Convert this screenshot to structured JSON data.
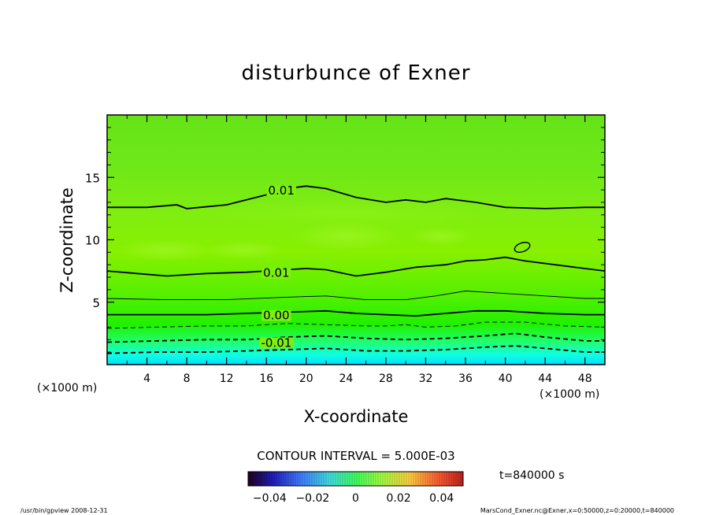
{
  "chart_data": {
    "type": "contour",
    "title": "disturbunce of Exner",
    "xlabel": "X-coordinate",
    "ylabel": "Z-coordinate",
    "x_unit": "(×1000 m)",
    "y_unit": "(×1000 m)",
    "xlim": [
      0,
      50
    ],
    "ylim": [
      0,
      20
    ],
    "x_ticks": [
      "4",
      "8",
      "12",
      "16",
      "20",
      "24",
      "28",
      "32",
      "36",
      "40",
      "44",
      "48"
    ],
    "y_ticks": [
      "5",
      "10",
      "15"
    ],
    "contour_interval_text": "CONTOUR INTERVAL = 5.000E-03",
    "time_text": "t=840000 s",
    "colorbar": {
      "range": [
        -0.05,
        0.05
      ],
      "tick_labels": [
        "−0.04",
        "−0.02",
        "0",
        "0.02",
        "0.04"
      ],
      "tick_values": [
        -0.04,
        -0.02,
        0,
        0.02,
        0.04
      ]
    },
    "contour_labels": [
      {
        "text": "0.01",
        "x": 17.5,
        "y": 14.0
      },
      {
        "text": "0.01",
        "x": 17.0,
        "y": 7.4
      },
      {
        "text": "0.00",
        "x": 17.0,
        "y": 4.0
      },
      {
        "text": "-0.01",
        "x": 17.0,
        "y": 1.8
      }
    ],
    "contours": [
      {
        "level": 0.01,
        "style": "solid",
        "points": [
          [
            0,
            12.6
          ],
          [
            4,
            12.6
          ],
          [
            7,
            12.8
          ],
          [
            8,
            12.5
          ],
          [
            12,
            12.8
          ],
          [
            16,
            13.6
          ],
          [
            18,
            14.1
          ],
          [
            20,
            14.3
          ],
          [
            22,
            14.1
          ],
          [
            25,
            13.4
          ],
          [
            28,
            13.0
          ],
          [
            30,
            13.2
          ],
          [
            32,
            13.0
          ],
          [
            34,
            13.3
          ],
          [
            37,
            13.0
          ],
          [
            40,
            12.6
          ],
          [
            44,
            12.5
          ],
          [
            48,
            12.6
          ],
          [
            50,
            12.6
          ]
        ]
      },
      {
        "level": 0.01,
        "style": "solid",
        "points": [
          [
            0,
            7.5
          ],
          [
            3,
            7.3
          ],
          [
            6,
            7.1
          ],
          [
            10,
            7.3
          ],
          [
            14,
            7.4
          ],
          [
            18,
            7.6
          ],
          [
            20,
            7.7
          ],
          [
            22,
            7.6
          ],
          [
            25,
            7.1
          ],
          [
            28,
            7.4
          ],
          [
            31,
            7.8
          ],
          [
            34,
            8.0
          ],
          [
            36,
            8.3
          ],
          [
            38,
            8.4
          ],
          [
            40,
            8.6
          ],
          [
            42,
            8.3
          ],
          [
            45,
            8.0
          ],
          [
            48,
            7.7
          ],
          [
            50,
            7.5
          ]
        ]
      },
      {
        "level": 0.005,
        "style": "solid",
        "points": [
          [
            0,
            5.3
          ],
          [
            6,
            5.2
          ],
          [
            12,
            5.2
          ],
          [
            18,
            5.4
          ],
          [
            22,
            5.5
          ],
          [
            26,
            5.2
          ],
          [
            30,
            5.2
          ],
          [
            33,
            5.5
          ],
          [
            36,
            5.9
          ],
          [
            40,
            5.7
          ],
          [
            44,
            5.5
          ],
          [
            48,
            5.3
          ],
          [
            50,
            5.3
          ]
        ]
      },
      {
        "level": 0.0,
        "style": "solid",
        "points": [
          [
            0,
            4.0
          ],
          [
            5,
            4.0
          ],
          [
            10,
            4.0
          ],
          [
            14,
            4.1
          ],
          [
            18,
            4.2
          ],
          [
            22,
            4.3
          ],
          [
            25,
            4.1
          ],
          [
            28,
            4.0
          ],
          [
            31,
            3.9
          ],
          [
            34,
            4.1
          ],
          [
            37,
            4.3
          ],
          [
            40,
            4.3
          ],
          [
            44,
            4.1
          ],
          [
            48,
            4.0
          ],
          [
            50,
            4.0
          ]
        ]
      },
      {
        "level": -0.005,
        "style": "dashed",
        "points": [
          [
            0,
            2.9
          ],
          [
            5,
            3.0
          ],
          [
            10,
            3.1
          ],
          [
            14,
            3.1
          ],
          [
            18,
            3.3
          ],
          [
            22,
            3.2
          ],
          [
            26,
            3.1
          ],
          [
            28,
            3.1
          ],
          [
            30,
            3.2
          ],
          [
            32,
            3.0
          ],
          [
            35,
            3.1
          ],
          [
            38,
            3.4
          ],
          [
            42,
            3.4
          ],
          [
            46,
            3.1
          ],
          [
            50,
            3.0
          ]
        ]
      },
      {
        "level": -0.01,
        "style": "dashed",
        "points": [
          [
            0,
            1.8
          ],
          [
            5,
            1.9
          ],
          [
            10,
            2.0
          ],
          [
            14,
            2.0
          ],
          [
            18,
            2.2
          ],
          [
            22,
            2.3
          ],
          [
            26,
            2.1
          ],
          [
            30,
            2.0
          ],
          [
            34,
            2.1
          ],
          [
            38,
            2.3
          ],
          [
            41,
            2.5
          ],
          [
            44,
            2.2
          ],
          [
            48,
            1.9
          ],
          [
            50,
            1.9
          ]
        ]
      },
      {
        "level": -0.015,
        "style": "dashed",
        "points": [
          [
            0,
            0.9
          ],
          [
            5,
            1.0
          ],
          [
            10,
            1.0
          ],
          [
            14,
            1.1
          ],
          [
            18,
            1.2
          ],
          [
            22,
            1.3
          ],
          [
            26,
            1.1
          ],
          [
            30,
            1.1
          ],
          [
            34,
            1.2
          ],
          [
            38,
            1.4
          ],
          [
            41,
            1.5
          ],
          [
            44,
            1.3
          ],
          [
            48,
            1.0
          ],
          [
            50,
            1.0
          ]
        ]
      }
    ],
    "closed_contours": [
      {
        "level": 0.01,
        "center": [
          41.7,
          9.4
        ],
        "radius": [
          0.8,
          0.35
        ]
      }
    ]
  },
  "footer": {
    "left": "/usr/bin/gpview   2008-12-31",
    "right": "MarsCond_Exner.nc@Exner,x=0:50000,z=0:20000,t=840000"
  }
}
